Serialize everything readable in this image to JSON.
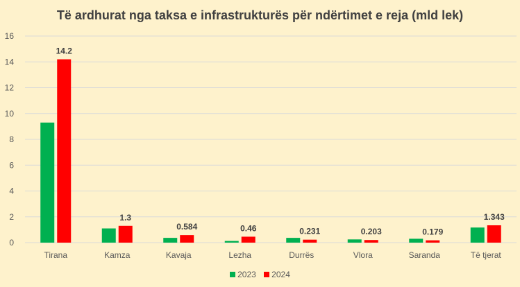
{
  "chart_data": {
    "type": "bar",
    "title": "Të ardhurat nga taksa e infrastrukturës për ndërtimet e reja (mld lek)",
    "categories": [
      "Tirana",
      "Kamza",
      "Kavaja",
      "Lezha",
      "Durrës",
      "Vlora",
      "Saranda",
      "Të tjerat"
    ],
    "series": [
      {
        "name": "2023",
        "color": "#00b050",
        "values": [
          9.3,
          1.1,
          0.37,
          0.13,
          0.37,
          0.25,
          0.3,
          1.17
        ]
      },
      {
        "name": "2024",
        "color": "#ff0000",
        "values": [
          14.2,
          1.3,
          0.584,
          0.46,
          0.231,
          0.203,
          0.179,
          1.343
        ],
        "data_labels": [
          "14.2",
          "1.3",
          "0.584",
          "0.46",
          "0.231",
          "0.203",
          "0.179",
          "1.343"
        ]
      }
    ],
    "ylim": [
      0,
      16
    ],
    "yticks": [
      "0",
      "2",
      "4",
      "6",
      "8",
      "10",
      "12",
      "14",
      "16"
    ],
    "grid": true,
    "legend_position": "bottom",
    "xlabel": "",
    "ylabel": ""
  }
}
